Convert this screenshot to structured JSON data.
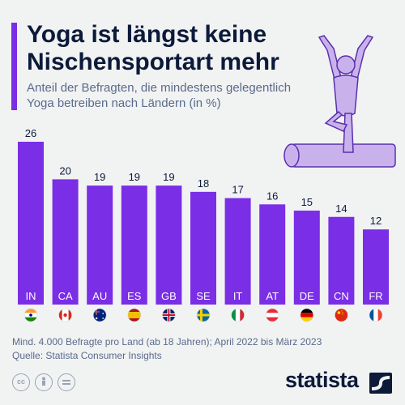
{
  "header": {
    "title_line1": "Yoga ist längst keine",
    "title_line2": "Nischensportart mehr",
    "subtitle_line1": "Anteil der Befragten, die mindestens gelegentlich",
    "subtitle_line2": "Yoga betreiben nach Ländern (in %)"
  },
  "colors": {
    "bar": "#7a2ee6",
    "accent": "#7a2ee6",
    "figure": "#c9b2ec",
    "text": "#0c1a3a",
    "muted": "#5a6b8c"
  },
  "chart_data": {
    "type": "bar",
    "title": "Yoga ist längst keine Nischensportart mehr",
    "subtitle": "Anteil der Befragten, die mindestens gelegentlich Yoga betreiben nach Ländern (in %)",
    "categories": [
      "IN",
      "CA",
      "AU",
      "ES",
      "GB",
      "SE",
      "IT",
      "AT",
      "DE",
      "CN",
      "FR"
    ],
    "values": [
      26,
      20,
      19,
      19,
      19,
      18,
      17,
      16,
      15,
      14,
      12
    ],
    "flags": [
      "flag-india",
      "flag-canada",
      "flag-australia",
      "flag-spain",
      "flag-united-kingdom",
      "flag-sweden",
      "flag-italy",
      "flag-austria",
      "flag-germany",
      "flag-china",
      "flag-france"
    ],
    "ylim": [
      0,
      26
    ],
    "grid": false,
    "xlabel": "",
    "ylabel": ""
  },
  "footer": {
    "note": "Mind. 4.000 Befragte pro Land (ab 18 Jahren); April 2022 bis März 2023",
    "source": "Quelle: Statista Consumer Insights",
    "license_icons": [
      "cc-icon",
      "person-icon",
      "equals-icon"
    ],
    "brand": "statista"
  }
}
